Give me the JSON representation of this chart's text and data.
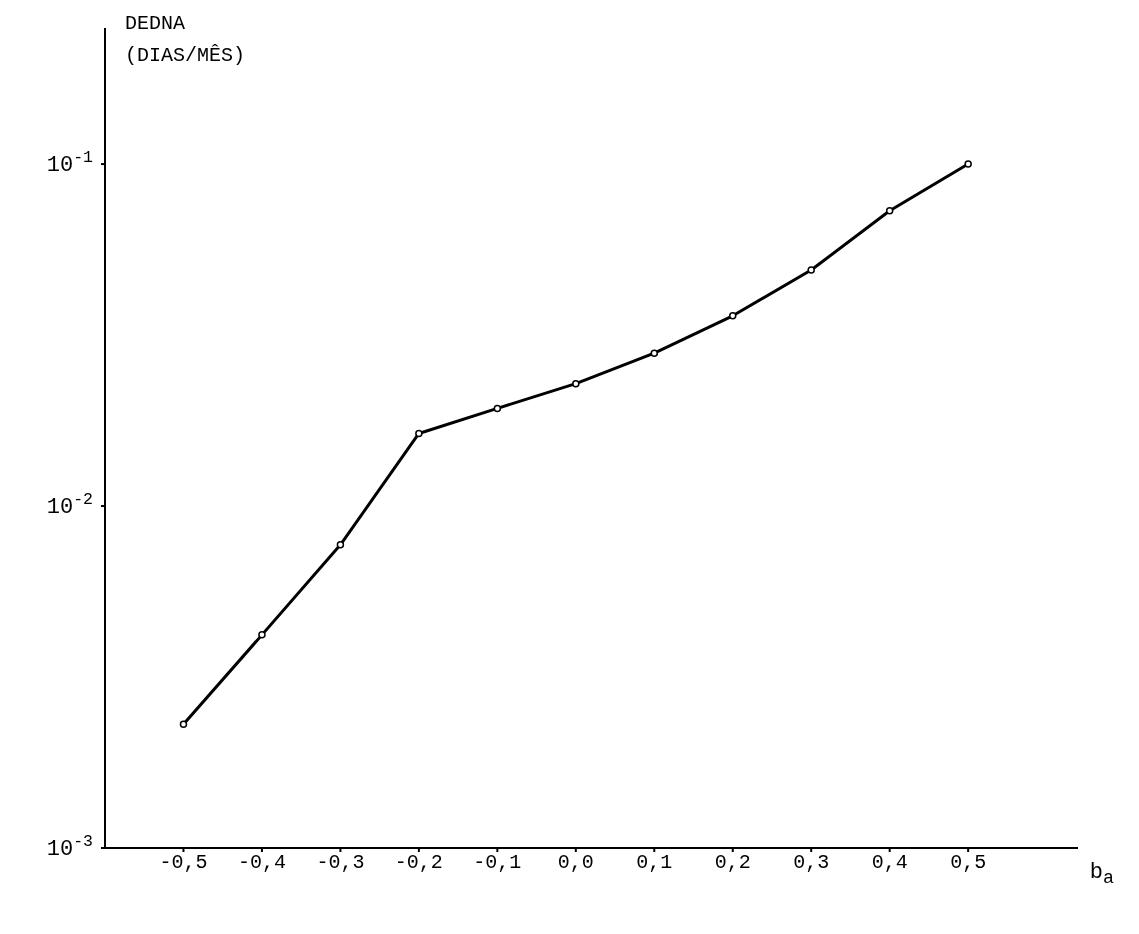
{
  "chart_data": {
    "type": "line",
    "ylabel": "DEDNA\n(DIAS/MÊS)",
    "xlabel": "b$_{a}$",
    "x": [
      -0.5,
      -0.4,
      -0.3,
      -0.2,
      -0.1,
      0.0,
      0.1,
      0.2,
      0.3,
      0.4,
      0.5
    ],
    "series": [
      {
        "color": "#000000",
        "values": [
          0.0023,
          0.0042,
          0.0077,
          0.0163,
          0.0193,
          0.0228,
          0.028,
          0.036,
          0.049,
          0.073,
          0.1
        ]
      }
    ],
    "log": "y",
    "xlim": [
      -0.6,
      0.64
    ],
    "ylim": [
      0.001,
      0.25
    ],
    "xticks": [
      {
        "value": -0.5,
        "label": "-0,5"
      },
      {
        "value": -0.4,
        "label": "-0,4"
      },
      {
        "value": -0.3,
        "label": "-0,3"
      },
      {
        "value": -0.2,
        "label": "-0,2"
      },
      {
        "value": -0.1,
        "label": "-0,1"
      },
      {
        "value": 0,
        "label": "0,0"
      },
      {
        "value": 0.1,
        "label": "0,1"
      },
      {
        "value": 0.2,
        "label": "0,2"
      },
      {
        "value": 0.3,
        "label": "0,3"
      },
      {
        "value": 0.4,
        "label": "0,4"
      },
      {
        "value": 0.5,
        "label": "0,5"
      }
    ],
    "yticks": [
      {
        "value": 0.001,
        "label": "10$^{-3}$"
      },
      {
        "value": 0.01,
        "label": "10$^{-2}$"
      },
      {
        "value": 0.1,
        "label": "10$^{-1}$"
      }
    ],
    "grid": false,
    "legend": false,
    "marker": "circle",
    "line_style": "solid"
  }
}
